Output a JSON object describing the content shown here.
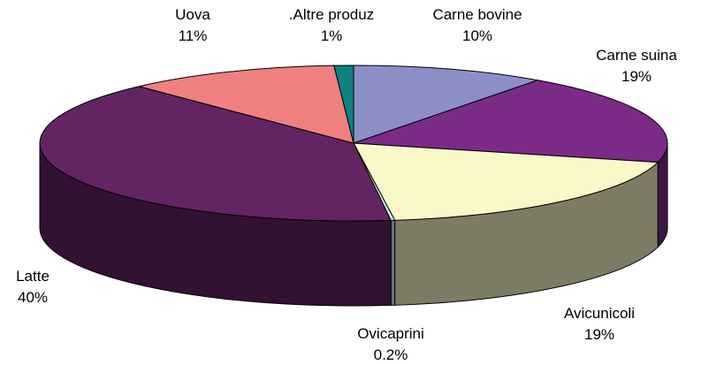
{
  "chart_data": {
    "type": "pie3d",
    "categories": [
      "Carne bovine",
      "Carne suina",
      "Avicunicoli",
      "Ovicaprini",
      "Latte",
      "Uova",
      ".Altre produz"
    ],
    "values": [
      10,
      19,
      19,
      0.2,
      40,
      11,
      1
    ],
    "value_labels": [
      "10%",
      "19%",
      "19%",
      "0.2%",
      "40%",
      "11%",
      "1%"
    ],
    "colors": [
      "#8c8fc6",
      "#7b2a88",
      "#f8f8c8",
      "#c8f0f0",
      "#632463",
      "#f08080",
      "#108080"
    ]
  }
}
